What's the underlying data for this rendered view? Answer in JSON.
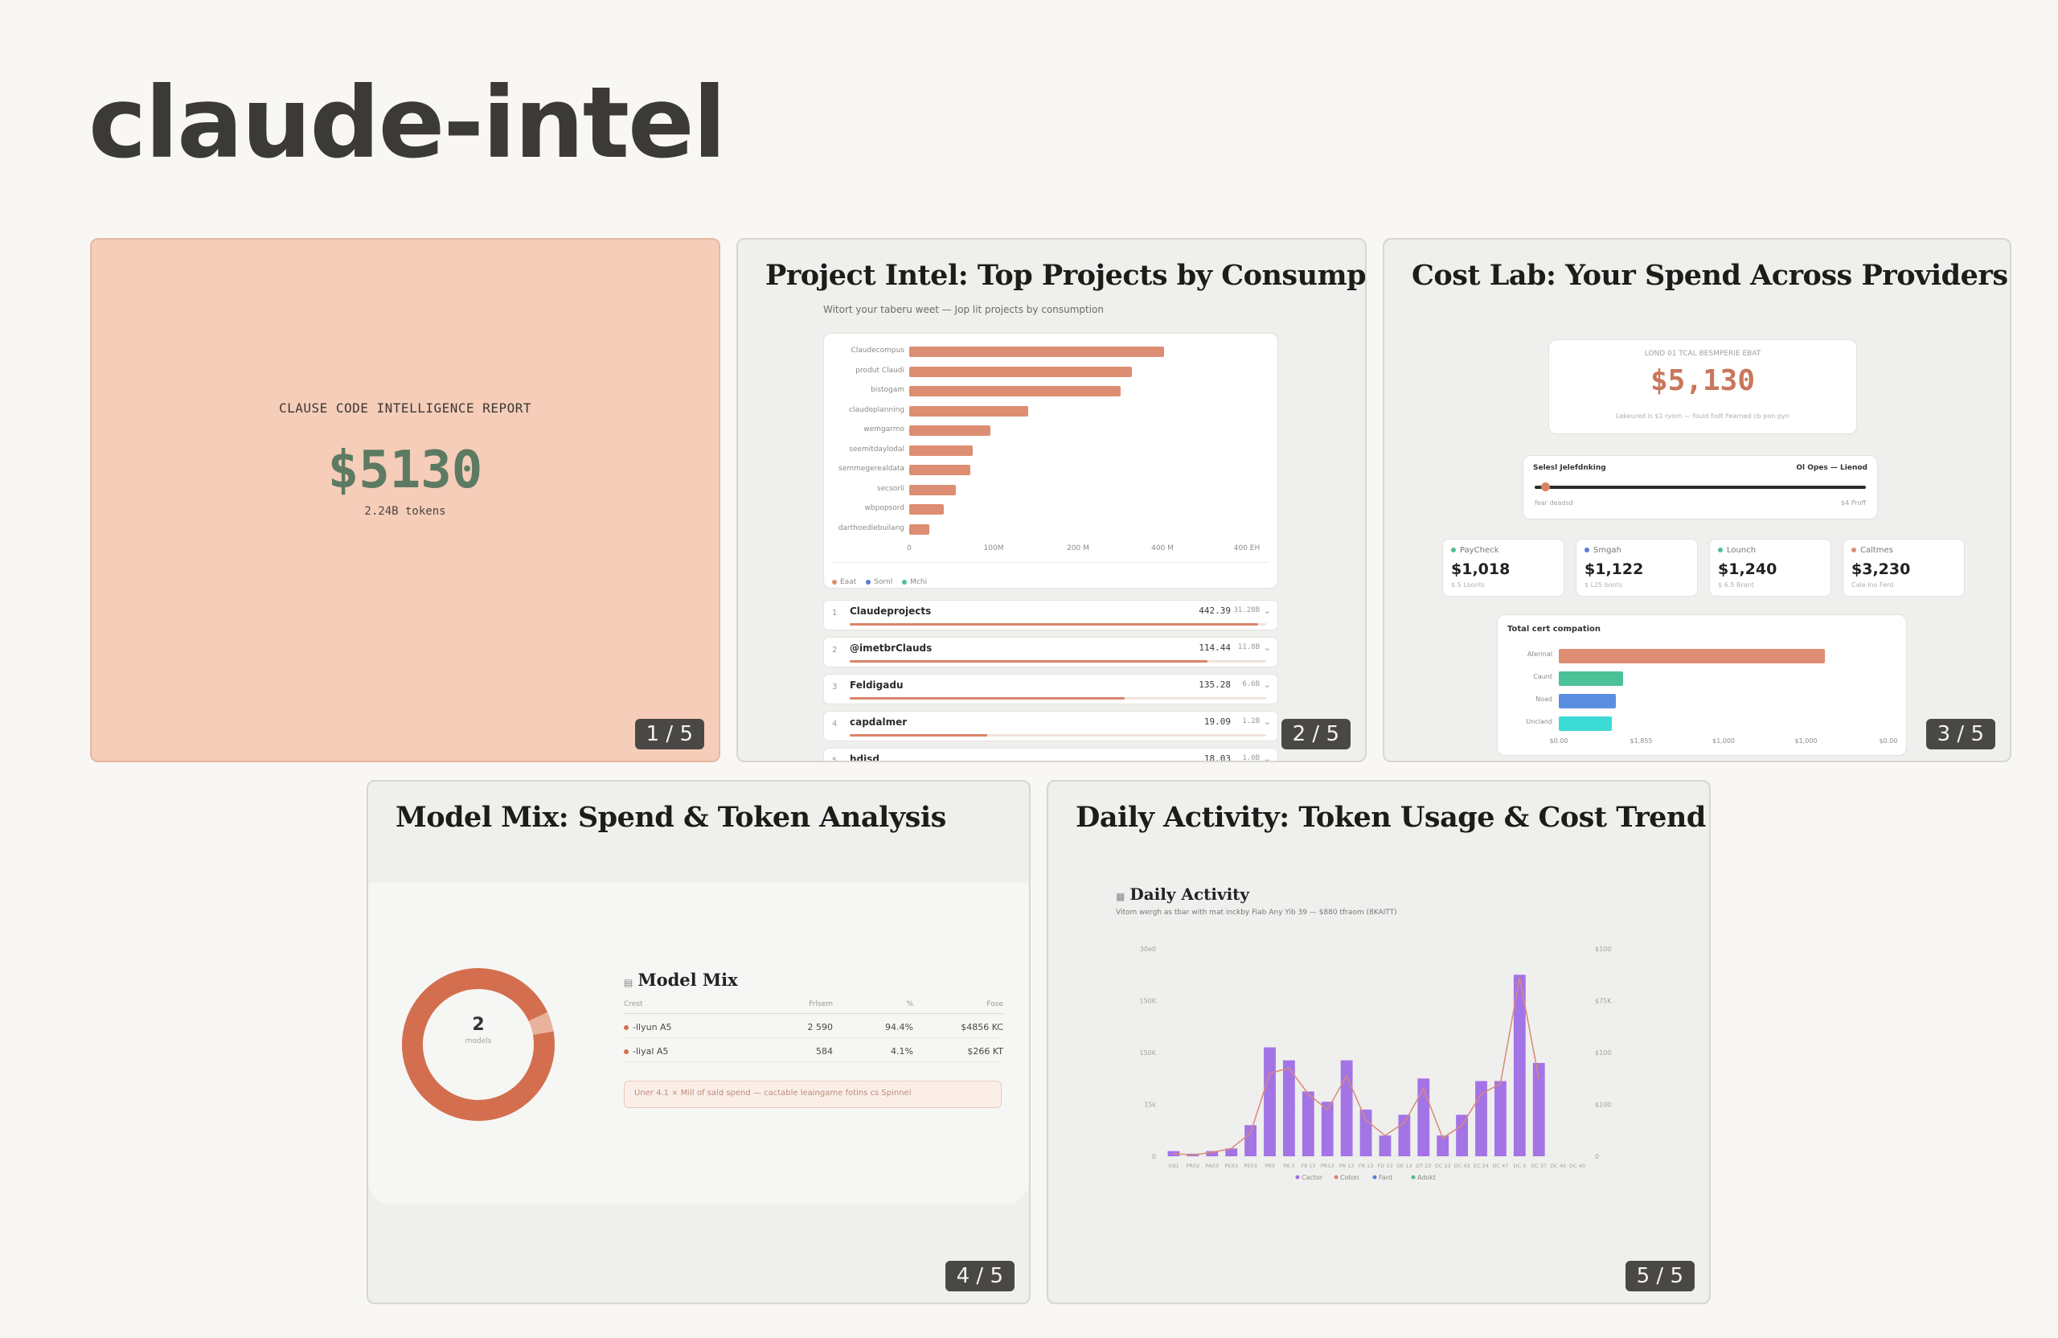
{
  "page": {
    "title": "claude-intel"
  },
  "slides": [
    {
      "badge": "1 / 5",
      "kicker": "CLAUSE CODE INTELLIGENCE REPORT",
      "total": "$5130",
      "tokens": "2.24B tokens"
    },
    {
      "badge": "2 / 5",
      "title": "Project Intel: Top Projects by Consumption",
      "subtitle": "Witort your taberu weet — Jop lit projects by consumption",
      "chart_data": {
        "type": "bar",
        "orientation": "horizontal",
        "categories": [
          "Claudecompus",
          "produt Claudi",
          "bistogam",
          "claudoplanning",
          "wemgarmo",
          "seemitdaylodal",
          "semmegerealdata",
          "secsorli",
          "wbpopsord",
          "darthoedlebuilang"
        ],
        "values": [
          440,
          385,
          365,
          205,
          140,
          110,
          105,
          80,
          60,
          35
        ],
        "x_ticks": [
          "0",
          "100M",
          "200 M",
          "400 M",
          "400 EH"
        ],
        "legend": [
          "Eaat",
          "Sornl",
          "Mchi"
        ],
        "legend_colors": [
          "#dd8d72",
          "#5b7bd6",
          "#4fbf8f"
        ]
      },
      "projects": [
        {
          "rank": "1",
          "name": "Claudeprojects",
          "amount": "442.39",
          "tokens": "31.28B",
          "share": 0.98
        },
        {
          "rank": "2",
          "name": "@imetbrClauds",
          "amount": "114.44",
          "tokens": "11.8B",
          "share": 0.86
        },
        {
          "rank": "3",
          "name": "Feldigadu",
          "amount": "135.28",
          "tokens": "6.6B",
          "share": 0.66
        },
        {
          "rank": "4",
          "name": "capdalmer",
          "amount": "19.09",
          "tokens": "1.2B",
          "share": 0.33
        },
        {
          "rank": "5",
          "name": "hdisd",
          "amount": "18.03",
          "tokens": "1.0B",
          "share": 0.2
        }
      ]
    },
    {
      "badge": "3 / 5",
      "title": "Cost Lab: Your Spend Across Providers",
      "hero_label": "LOND 01 TCAL BESMPERIE EBAT",
      "hero_value": "$5,130",
      "hero_note": "Lekeured is $1 ryorn — fould fodt Fearned cb pon pyn",
      "slider_label": "Selesl Jelefdnking",
      "slider_right": "Ol Opes — Lienod",
      "slider_min": "fear deadsd",
      "slider_max": "$4 Proff",
      "slider_level": 0.02,
      "providers": [
        {
          "name": "PayCheck",
          "value": "$1,018",
          "sub": "$ 5 Lbonts",
          "color": "#4fbf8f"
        },
        {
          "name": "Smgah",
          "value": "$1,122",
          "sub": "$ L25 bonts",
          "color": "#5b7bd6"
        },
        {
          "name": "Lounch",
          "value": "$1,240",
          "sub": "$ 6.5 Brant",
          "color": "#4fbf8f"
        },
        {
          "name": "Caltmes",
          "value": "$3,230",
          "sub": "Cale Ino Ferd",
          "color": "#dd8d72"
        }
      ],
      "chart_data": {
        "type": "bar",
        "orientation": "horizontal",
        "title": "Total cert compation",
        "categories": [
          "Aterinal",
          "Caunt",
          "Noad",
          "Uncland"
        ],
        "values": [
          3230,
          780,
          690,
          640
        ],
        "colors": [
          "#dd8d72",
          "#4cc097",
          "#5b8ee0",
          "#3ddbd6"
        ],
        "x_ticks": [
          "$0.00",
          "$1,855",
          "$1,000",
          "$1,000",
          "$0.00"
        ]
      }
    },
    {
      "badge": "4 / 5",
      "title": "Model Mix: Spend & Token Analysis",
      "donut_value": "2",
      "donut_caption": "models",
      "heading": "Model Mix",
      "columns": [
        "Crest",
        "Frlsem",
        "%",
        "Fose"
      ],
      "rows": [
        {
          "model": "-llyun A5",
          "tokens": "2 590",
          "pct": "94.4%",
          "spend": "$4856 KC"
        },
        {
          "model": "-liyal A5",
          "tokens": "584",
          "pct": "4.1%",
          "spend": "$266 KT"
        }
      ],
      "chart_data": {
        "type": "pie",
        "categories": [
          "-llyun A5",
          "-liyal A5"
        ],
        "values": [
          94.4,
          4.1
        ]
      },
      "callout": "Uner 4.1 × Mill of sald spend — cactable leaingame fotins cs Spinnel",
      "colors": {
        "primary": "#d36f4f",
        "secondary": "#e9b29c"
      }
    },
    {
      "badge": "5 / 5",
      "title": "Daily Activity: Token Usage & Cost Trend",
      "heading": "Daily Activity",
      "subtitle": "Vitom wergh as tbar with mat inckby Fiab Any Yib 39 — $880 tfraom (8KAITT)",
      "chart_data": {
        "type": "bar",
        "categories": [
          "Od1",
          "PR02",
          "PA03",
          "PEX3",
          "PE03",
          "PR3",
          "PA 3",
          "F8 13",
          "PR13",
          "PR 13",
          "FR 13",
          "FD 13",
          "DE 13",
          "DT 23",
          "DC 23",
          "DC 43",
          "EC 24",
          "DC 47",
          "DC 3",
          "DC 37",
          "DC 40",
          "DC 40"
        ],
        "values": [
          2,
          1,
          2,
          3,
          12,
          42,
          37,
          25,
          21,
          37,
          18,
          8,
          16,
          30,
          8,
          16,
          29,
          29,
          70,
          36,
          0,
          0
        ],
        "line_values": [
          1,
          0.5,
          1.5,
          3,
          9,
          32,
          34,
          24,
          18,
          31,
          14,
          8,
          13,
          26,
          7,
          12,
          24,
          28,
          69,
          30,
          0,
          0
        ],
        "y_ticks_left": [
          "0",
          "15k",
          "150K",
          "150K",
          "30e0"
        ],
        "y_ticks_right": [
          "0",
          "$100",
          "$100",
          "$75K",
          "$100"
        ],
        "legend": [
          "Cactor",
          "Coton",
          "Fard",
          "Adokt"
        ],
        "legend_colors": [
          "#9b6fe0",
          "#e87b7b",
          "#5b7bd6",
          "#4fbf8f"
        ],
        "ylim": [
          0,
          80
        ]
      },
      "colors": {
        "bar": "#a374e6",
        "line": "#d98a78"
      }
    }
  ]
}
